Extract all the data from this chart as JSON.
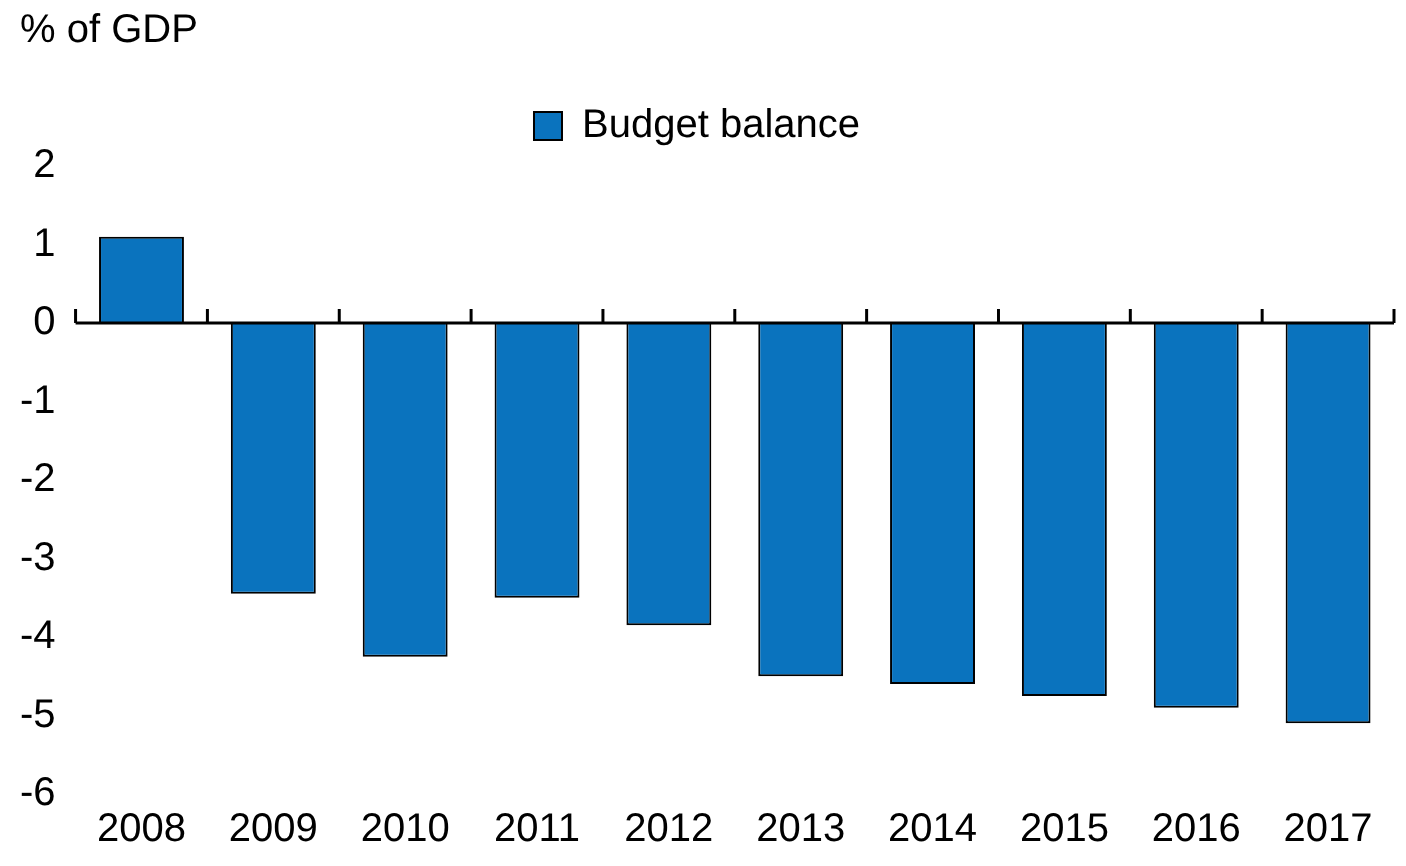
{
  "chart_data": {
    "type": "bar",
    "ylabel": "% of GDP",
    "categories": [
      "2008",
      "2009",
      "2010",
      "2011",
      "2012",
      "2013",
      "2014",
      "2015",
      "2016",
      "2017"
    ],
    "series": [
      {
        "name": "Budget balance",
        "color": "#0a73be",
        "values": [
          1.1,
          -3.45,
          -4.25,
          -3.5,
          -3.85,
          -4.5,
          -4.6,
          -4.75,
          -4.9,
          -5.1
        ]
      }
    ],
    "ylim": [
      -6,
      2
    ],
    "yticks": [
      -6,
      -5,
      -4,
      -3,
      -2,
      -1,
      0,
      1,
      2
    ],
    "legend": "top"
  }
}
